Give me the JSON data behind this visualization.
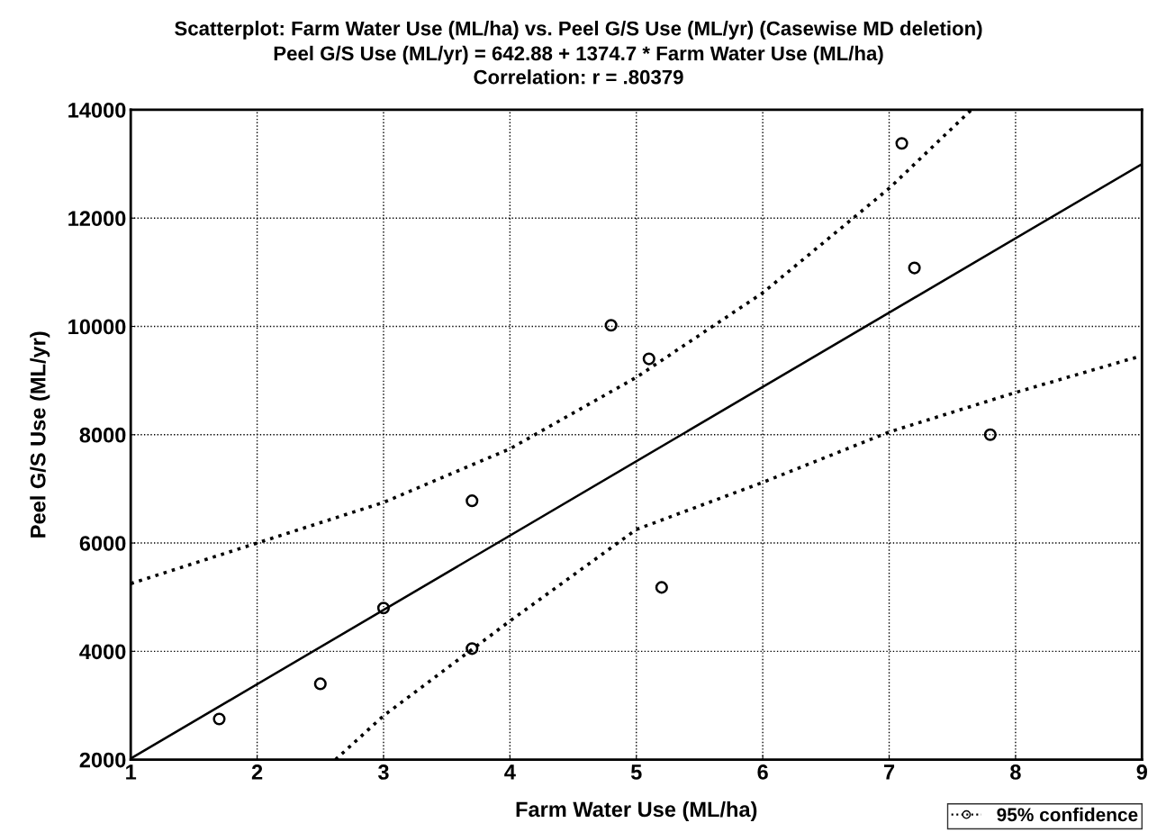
{
  "chart_data": {
    "type": "scatter",
    "title": "Scatterplot: Farm Water Use (ML/ha) vs. Peel G/S Use (ML/yr) (Casewise MD deletion)",
    "subtitle": "Peel G/S Use (ML/yr) = 642.88 + 1374.7 * Farm Water Use (ML/ha)\nCorrelation: r = .80379",
    "xlabel": "Farm Water Use (ML/ha)",
    "ylabel": "Peel G/S Use (ML/yr)",
    "xlim": [
      1,
      9
    ],
    "xticks": [
      1,
      2,
      3,
      4,
      5,
      6,
      7,
      8,
      9
    ],
    "ylim": [
      2000,
      14000
    ],
    "yticks": [
      2000,
      4000,
      6000,
      8000,
      10000,
      12000,
      14000
    ],
    "grid": true,
    "legend": "bottom right",
    "series": [
      {
        "color": "#000000",
        "marker": "circle",
        "x": [
          1.7,
          2.5,
          3.0,
          3.7,
          3.7,
          4.8,
          5.1,
          5.2,
          7.1,
          7.2,
          7.8
        ],
        "values": [
          2750,
          3400,
          4800,
          4050,
          6780,
          10020,
          9400,
          5180,
          13380,
          11080,
          8000
        ]
      },
      {
        "type": "line",
        "color": "#000000",
        "line_style": "solid",
        "x": [
          1,
          9
        ],
        "values": [
          2020,
          13000
        ]
      },
      {
        "type": "line",
        "color": "#000000",
        "line_style": "dotted",
        "name": "95% confidence",
        "x": [
          1,
          2,
          3,
          4,
          5,
          6,
          7,
          7.65
        ],
        "values": [
          5250,
          6000,
          6750,
          7740,
          9060,
          10620,
          12550,
          14000
        ]
      },
      {
        "type": "line",
        "color": "#000000",
        "line_style": "dotted",
        "x": [
          2.62,
          3,
          4,
          5,
          6,
          7,
          8,
          9
        ],
        "values": [
          2000,
          2810,
          4560,
          6250,
          7120,
          8050,
          8780,
          9460
        ]
      }
    ]
  }
}
